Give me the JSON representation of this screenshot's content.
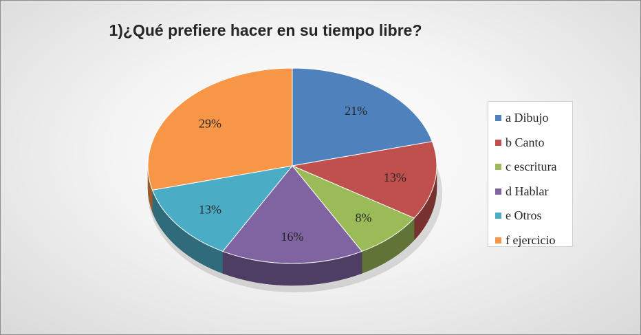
{
  "chart_data": {
    "type": "pie",
    "title": "1)¿Qué prefiere hacer en su tiempo libre?",
    "legend_position": "right",
    "slices": [
      {
        "label": "a Dibujo",
        "value": 21,
        "display": "21%",
        "color": "#4F81BD"
      },
      {
        "label": "b Canto",
        "value": 13,
        "display": "13%",
        "color": "#C0504D"
      },
      {
        "label": "c escritura",
        "value": 8,
        "display": "8%",
        "color": "#9BBB59"
      },
      {
        "label": "d Hablar",
        "value": 16,
        "display": "16%",
        "color": "#8064A2"
      },
      {
        "label": "e Otros",
        "value": 13,
        "display": "13%",
        "color": "#4BACC6"
      },
      {
        "label": "f ejercicio",
        "value": 29,
        "display": "29%",
        "color": "#F79646"
      }
    ]
  }
}
